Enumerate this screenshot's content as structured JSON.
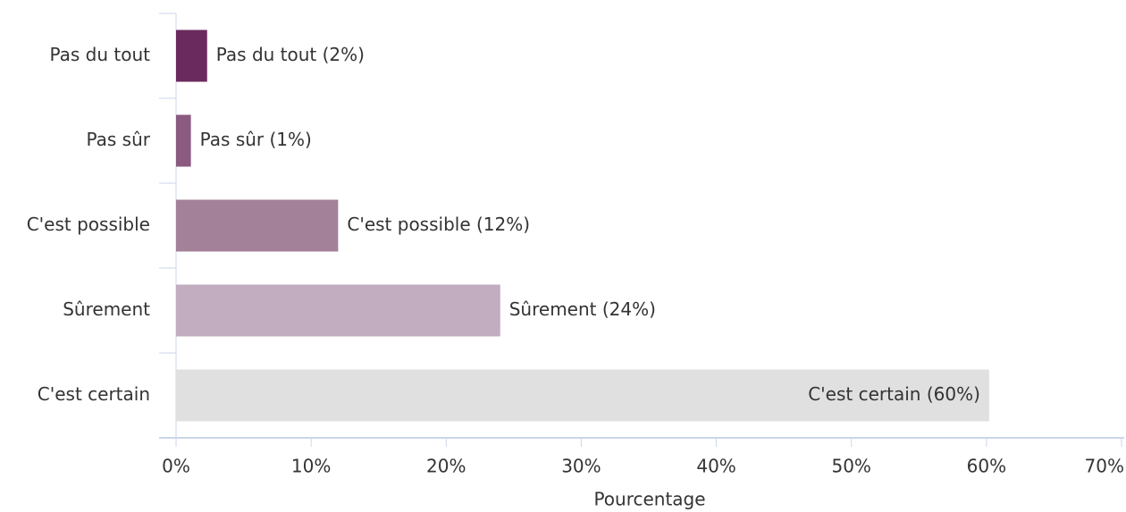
{
  "chart_data": {
    "type": "bar",
    "orientation": "horizontal",
    "categories": [
      "Pas du tout",
      "Pas sûr",
      "C'est possible",
      "Sûrement",
      "C'est certain"
    ],
    "values": [
      2.3,
      1.1,
      12,
      24,
      60.2
    ],
    "value_labels": [
      "Pas du tout (2%)",
      "Pas sûr (1%)",
      "C'est possible (12%)",
      "Sûrement (24%)",
      "C'est certain (60%)"
    ],
    "colors": [
      "#6b2a5e",
      "#8a5a80",
      "#a38199",
      "#c1adbf",
      "#e0e0e0"
    ],
    "x_label": "Pourcentage",
    "xlim": [
      0,
      70
    ],
    "xticks": [
      {
        "value": 0,
        "label": "0%"
      },
      {
        "value": 10,
        "label": "10%"
      },
      {
        "value": 20,
        "label": "20%"
      },
      {
        "value": 30,
        "label": "30%"
      },
      {
        "value": 40,
        "label": "40%"
      },
      {
        "value": 50,
        "label": "50%"
      },
      {
        "value": 60,
        "label": "60%"
      },
      {
        "value": 70,
        "label": "70%"
      }
    ],
    "grid": false
  }
}
